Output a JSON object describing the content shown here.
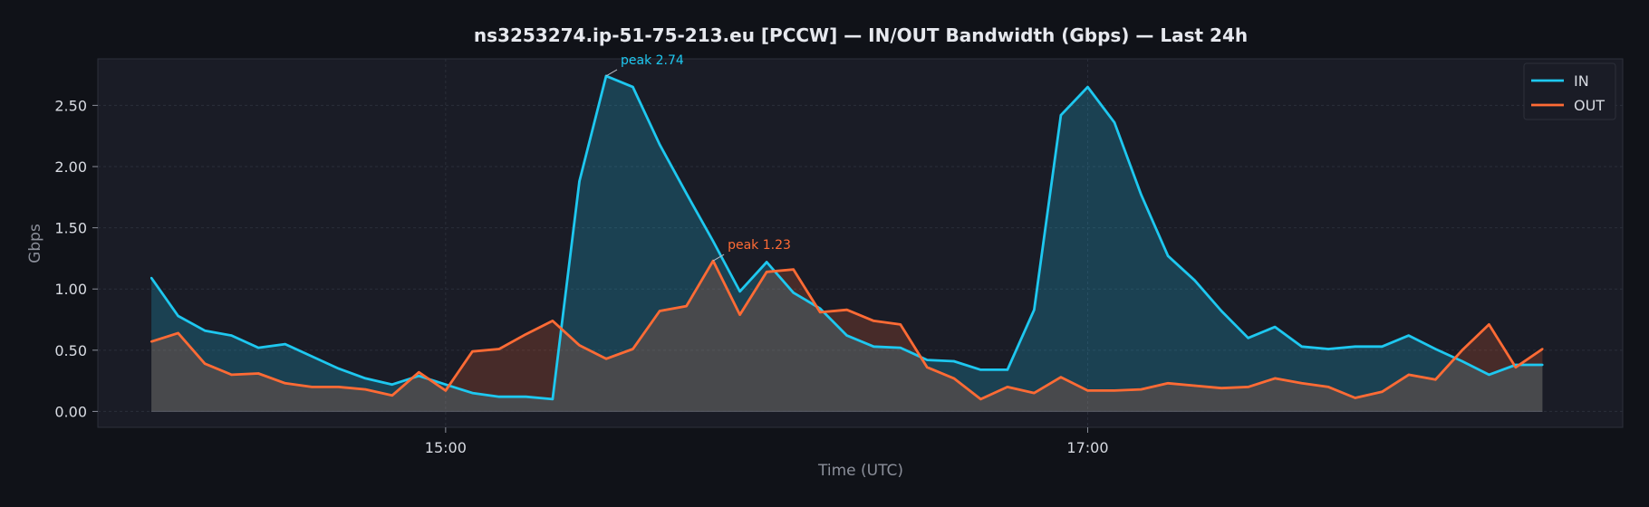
{
  "chart_data": {
    "type": "line",
    "title": "ns3253274.ip-51-75-213.eu [PCCW] — IN/OUT Bandwidth (Gbps) — Last 24h",
    "xlabel": "Time (UTC)",
    "ylabel": "Gbps",
    "x_start": "14:05",
    "x_step_minutes": 5,
    "xlim": [
      "13:55",
      "18:40"
    ],
    "ylim": [
      -0.13,
      2.88
    ],
    "y_ticks": [
      "0.00",
      "0.50",
      "1.00",
      "1.50",
      "2.00",
      "2.50"
    ],
    "x_ticks": [
      {
        "label": "15:00"
      },
      {
        "label": "17:00"
      }
    ],
    "grid": true,
    "legend_position": "top-right",
    "series": [
      {
        "name": "IN",
        "color": "#1ec8f0",
        "values": [
          1.09,
          0.78,
          0.66,
          0.62,
          0.52,
          0.55,
          0.45,
          0.35,
          0.27,
          0.22,
          0.29,
          0.22,
          0.15,
          0.12,
          0.12,
          0.1,
          1.88,
          2.74,
          2.65,
          2.18,
          1.78,
          1.39,
          0.98,
          1.22,
          0.97,
          0.84,
          0.62,
          0.53,
          0.52,
          0.42,
          0.41,
          0.34,
          0.34,
          0.83,
          2.42,
          2.65,
          2.36,
          1.77,
          1.27,
          1.07,
          0.82,
          0.6,
          0.69,
          0.53,
          0.51,
          0.53,
          0.53,
          0.62,
          0.51,
          0.41,
          0.3,
          0.38,
          0.38
        ]
      },
      {
        "name": "OUT",
        "color": "#ff6b35",
        "values": [
          0.57,
          0.64,
          0.39,
          0.3,
          0.31,
          0.23,
          0.2,
          0.2,
          0.18,
          0.13,
          0.32,
          0.17,
          0.49,
          0.51,
          0.63,
          0.74,
          0.54,
          0.43,
          0.51,
          0.82,
          0.86,
          1.23,
          0.79,
          1.14,
          1.16,
          0.81,
          0.83,
          0.74,
          0.71,
          0.36,
          0.27,
          0.1,
          0.2,
          0.15,
          0.28,
          0.17,
          0.17,
          0.18,
          0.23,
          0.21,
          0.19,
          0.2,
          0.27,
          0.23,
          0.2,
          0.11,
          0.16,
          0.3,
          0.26,
          0.5,
          0.71,
          0.36,
          0.51
        ]
      }
    ],
    "annotations": [
      {
        "series": 0,
        "index": 17,
        "text": "peak 2.74"
      },
      {
        "series": 1,
        "index": 21,
        "text": "peak 1.23"
      }
    ]
  }
}
